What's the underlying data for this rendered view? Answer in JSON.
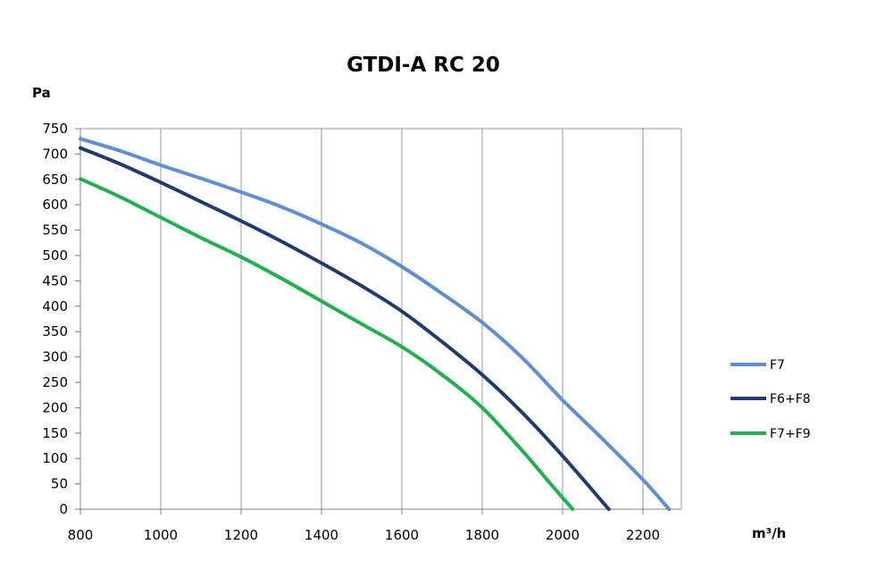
{
  "chart_data": {
    "type": "line",
    "title": "GTDI-A RC 20",
    "xlabel": "m³/h",
    "ylabel": "Pa",
    "xlim": [
      800,
      2300
    ],
    "ylim": [
      0,
      750
    ],
    "xticks": [
      800,
      1000,
      1200,
      1400,
      1600,
      1800,
      2000,
      2200
    ],
    "yticks": [
      0,
      50,
      100,
      150,
      200,
      250,
      300,
      350,
      400,
      450,
      500,
      550,
      600,
      650,
      700,
      750
    ],
    "grid": "vertical",
    "legend_position": "right",
    "series": [
      {
        "name": "F7",
        "color": "#5B8FD6",
        "points": [
          [
            800,
            730
          ],
          [
            900,
            706
          ],
          [
            1000,
            678
          ],
          [
            1100,
            652
          ],
          [
            1200,
            625
          ],
          [
            1300,
            596
          ],
          [
            1400,
            562
          ],
          [
            1500,
            524
          ],
          [
            1600,
            478
          ],
          [
            1700,
            425
          ],
          [
            1800,
            368
          ],
          [
            1900,
            298
          ],
          [
            2000,
            215
          ],
          [
            2100,
            138
          ],
          [
            2200,
            58
          ],
          [
            2265,
            0
          ]
        ]
      },
      {
        "name": "F6+F8",
        "color": "#1F3B70",
        "points": [
          [
            800,
            712
          ],
          [
            900,
            680
          ],
          [
            1000,
            644
          ],
          [
            1100,
            606
          ],
          [
            1200,
            568
          ],
          [
            1300,
            528
          ],
          [
            1400,
            485
          ],
          [
            1500,
            440
          ],
          [
            1600,
            390
          ],
          [
            1700,
            330
          ],
          [
            1800,
            265
          ],
          [
            1900,
            190
          ],
          [
            2000,
            105
          ],
          [
            2115,
            0
          ]
        ]
      },
      {
        "name": "F7+F9",
        "color": "#1DB34A",
        "points": [
          [
            800,
            651
          ],
          [
            900,
            615
          ],
          [
            1000,
            575
          ],
          [
            1100,
            535
          ],
          [
            1200,
            497
          ],
          [
            1300,
            455
          ],
          [
            1400,
            410
          ],
          [
            1500,
            365
          ],
          [
            1600,
            320
          ],
          [
            1700,
            265
          ],
          [
            1800,
            200
          ],
          [
            1900,
            115
          ],
          [
            1970,
            50
          ],
          [
            2025,
            0
          ]
        ]
      }
    ]
  }
}
